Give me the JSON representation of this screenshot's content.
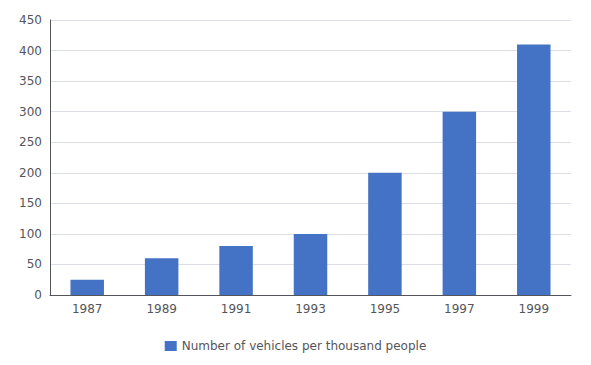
{
  "chart_data": {
    "type": "bar",
    "categories": [
      "1987",
      "1989",
      "1991",
      "1993",
      "1995",
      "1997",
      "1999"
    ],
    "series": [
      {
        "name": "Number of vehicles per thousand people",
        "color": "#4472C4",
        "values": [
          25,
          60,
          80,
          100,
          200,
          300,
          410
        ]
      }
    ],
    "ylim": [
      0,
      450
    ],
    "yticks": [
      0,
      50,
      100,
      150,
      200,
      250,
      300,
      350,
      400,
      450
    ],
    "grid": true,
    "legend": "bottom"
  }
}
